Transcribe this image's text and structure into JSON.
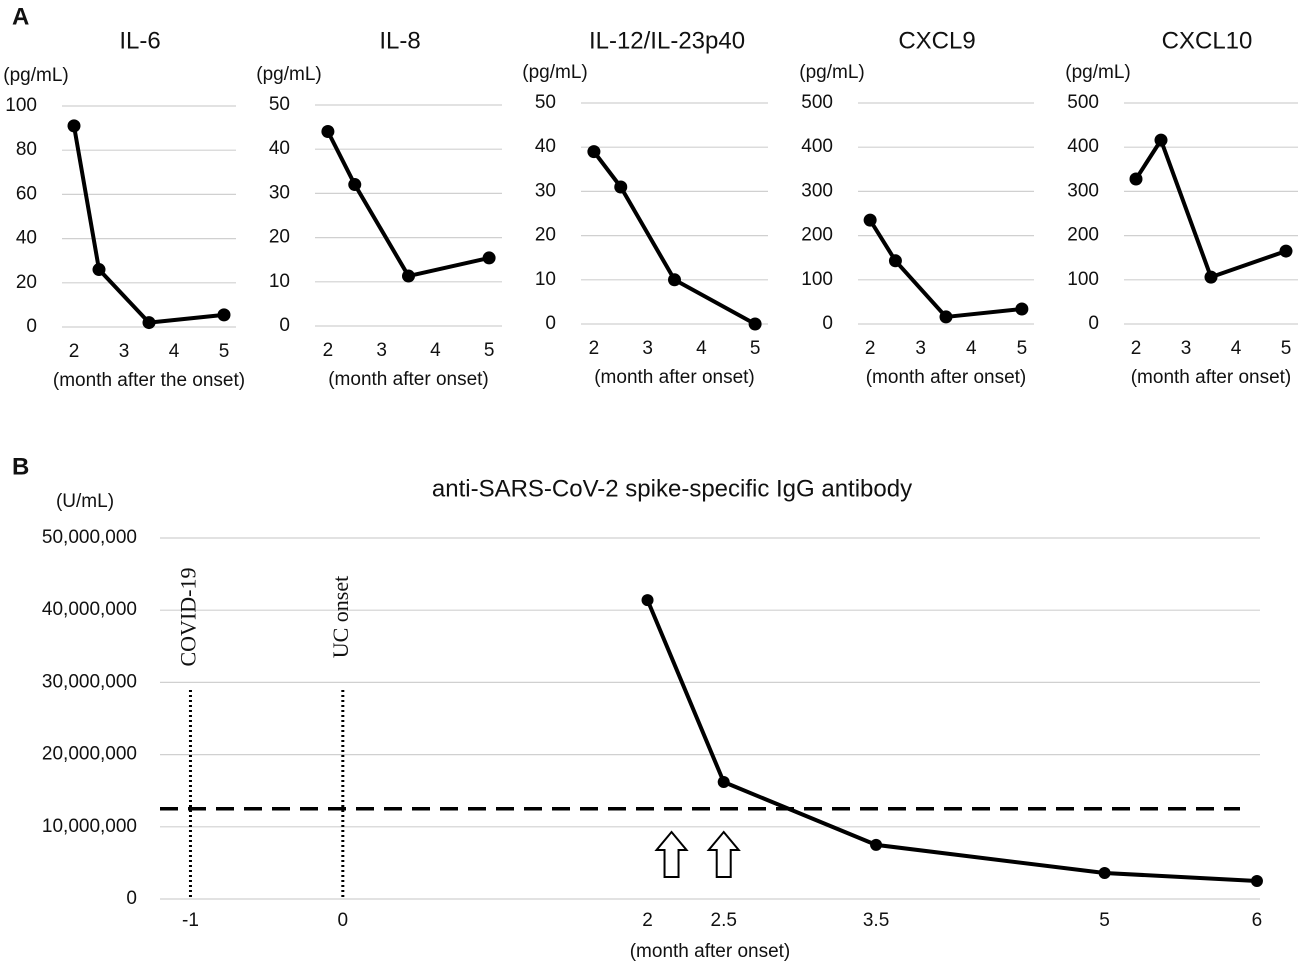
{
  "chart_data": [
    {
      "type": "line",
      "panel": "A",
      "title": "IL-6",
      "y_label": "(pg/mL)",
      "x_label": "(month after the onset)",
      "x": [
        2,
        2.5,
        3.5,
        5
      ],
      "values": [
        91,
        26,
        2,
        5.5
      ],
      "color": "#000000",
      "xlim": [
        1.76,
        5.24
      ],
      "xticks": [
        2,
        3,
        4,
        5
      ],
      "ylim": [
        0,
        100
      ],
      "yticks": [
        0,
        20,
        40,
        60,
        80,
        100
      ],
      "grid": true
    },
    {
      "type": "line",
      "title": "IL-8",
      "y_label": "(pg/mL)",
      "x_label": "(month after onset)",
      "x": [
        2,
        2.5,
        3.5,
        5
      ],
      "values": [
        44,
        32,
        11.3,
        15.4
      ],
      "color": "#000000",
      "xlim": [
        1.76,
        5.24
      ],
      "xticks": [
        2,
        3,
        4,
        5
      ],
      "ylim": [
        0,
        50
      ],
      "yticks": [
        0,
        10,
        20,
        30,
        40,
        50
      ],
      "grid": true
    },
    {
      "type": "line",
      "title": "IL-12/IL-23p40",
      "y_label": "(pg/mL)",
      "x_label": "(month after onset)",
      "x": [
        2,
        2.5,
        3.5,
        5
      ],
      "values": [
        39,
        31,
        10,
        0
      ],
      "color": "#000000",
      "xlim": [
        1.76,
        5.24
      ],
      "xticks": [
        2,
        3,
        4,
        5
      ],
      "ylim": [
        0,
        50
      ],
      "yticks": [
        0,
        10,
        20,
        30,
        40,
        50
      ],
      "grid": true
    },
    {
      "type": "line",
      "title": "CXCL9",
      "y_label": "(pg/mL)",
      "x_label": "(month after onset)",
      "x": [
        2,
        2.5,
        3.5,
        5
      ],
      "values": [
        235,
        143,
        16,
        34
      ],
      "color": "#000000",
      "xlim": [
        1.76,
        5.24
      ],
      "xticks": [
        2,
        3,
        4,
        5
      ],
      "ylim": [
        0,
        500
      ],
      "yticks": [
        0,
        100,
        200,
        300,
        400,
        500
      ],
      "grid": true
    },
    {
      "type": "line",
      "title": "CXCL10",
      "y_label": "(pg/mL)",
      "x_label": "(month after onset)",
      "x": [
        2,
        2.5,
        3.5,
        5
      ],
      "values": [
        328,
        416,
        106,
        165
      ],
      "color": "#000000",
      "xlim": [
        1.76,
        5.24
      ],
      "xticks": [
        2,
        3,
        4,
        5
      ],
      "ylim": [
        0,
        500
      ],
      "yticks": [
        0,
        100,
        200,
        300,
        400,
        500
      ],
      "grid": true
    },
    {
      "type": "line",
      "panel": "B",
      "title": "anti-SARS-CoV-2 spike-specific IgG antibody",
      "y_label": "(U/mL)",
      "x_label": "(month after onset)",
      "x": [
        2,
        2.5,
        3.5,
        5,
        6
      ],
      "values": [
        41400000,
        16200000,
        7500000,
        3600000,
        2500000
      ],
      "color": "#000000",
      "xlim": [
        -1.2,
        6.02
      ],
      "xticks": [
        -1,
        0,
        2,
        2.5,
        3.5,
        5,
        6
      ],
      "ylim": [
        0,
        50000000
      ],
      "yticks": [
        0,
        {
          "value": 10000000,
          "label": "10,000,000"
        },
        {
          "value": 20000000,
          "label": "20,000,000"
        },
        {
          "value": 30000000,
          "label": "30,000,000"
        },
        {
          "value": 40000000,
          "label": "40,000,000"
        },
        {
          "value": 50000000,
          "label": "50,000,000"
        }
      ],
      "grid": true,
      "reference_line": 12500000,
      "annotations": [
        {
          "x": -1,
          "label": "COVID-19"
        },
        {
          "x": 0,
          "label": "UC onset"
        }
      ],
      "arrows": [
        2,
        2.5
      ]
    }
  ]
}
